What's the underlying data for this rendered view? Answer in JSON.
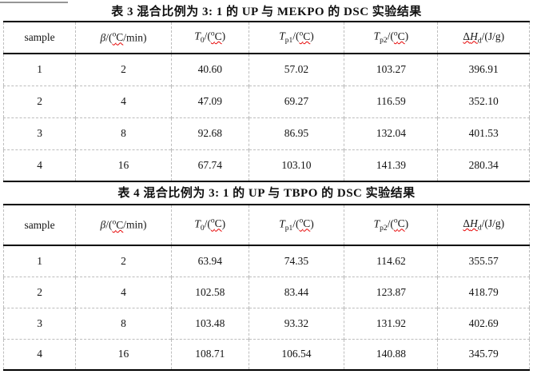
{
  "headers": [
    [
      {
        "t": "sample"
      }
    ],
    [
      {
        "t": "β",
        "s": "i"
      },
      {
        "t": "/("
      },
      {
        "g": [
          {
            "t": "o",
            "s": "sup"
          },
          {
            "t": "C"
          }
        ],
        "s": "wavy"
      },
      {
        "t": "/min)"
      }
    ],
    [
      {
        "t": "T",
        "s": "i"
      },
      {
        "t": "0",
        "s": "sub"
      },
      {
        "t": "/("
      },
      {
        "g": [
          {
            "t": "o",
            "s": "sup"
          },
          {
            "t": "C"
          }
        ],
        "s": "wavy"
      },
      {
        "t": ")"
      }
    ],
    [
      {
        "t": "T",
        "s": "i"
      },
      {
        "t": "p1",
        "s": "sub"
      },
      {
        "t": "/("
      },
      {
        "g": [
          {
            "t": "o",
            "s": "sup"
          },
          {
            "t": "C"
          }
        ],
        "s": "wavy"
      },
      {
        "t": ")"
      }
    ],
    [
      {
        "t": "T",
        "s": "i"
      },
      {
        "t": "p2",
        "s": "sub"
      },
      {
        "t": "/("
      },
      {
        "g": [
          {
            "t": "o",
            "s": "sup"
          },
          {
            "t": "C"
          }
        ],
        "s": "wavy"
      },
      {
        "t": ")"
      }
    ],
    [
      {
        "g": [
          {
            "t": "Δ"
          },
          {
            "t": "H",
            "s": "i"
          },
          {
            "t": "d",
            "s": "sub"
          }
        ],
        "s": "wavy"
      },
      {
        "t": "/(J/g)"
      }
    ]
  ],
  "tables": [
    {
      "title": "表 3 混合比例为 3: 1 的 UP 与 MEKPO 的 DSC 实验结果",
      "rows": [
        [
          "1",
          "2",
          "40.60",
          "57.02",
          "103.27",
          "396.91"
        ],
        [
          "2",
          "4",
          "47.09",
          "69.27",
          "116.59",
          "352.10"
        ],
        [
          "3",
          "8",
          "92.68",
          "86.95",
          "132.04",
          "401.53"
        ],
        [
          "4",
          "16",
          "67.74",
          "103.10",
          "141.39",
          "280.34"
        ]
      ]
    },
    {
      "title": "表 4  混合比例为 3: 1 的 UP 与 TBPO 的 DSC 实验结果",
      "rows": [
        [
          "1",
          "2",
          "63.94",
          "74.35",
          "114.62",
          "355.57"
        ],
        [
          "2",
          "4",
          "102.58",
          "83.44",
          "123.87",
          "418.79"
        ],
        [
          "3",
          "8",
          "103.48",
          "93.32",
          "131.92",
          "402.69"
        ],
        [
          "4",
          "16",
          "108.71",
          "106.54",
          "140.88",
          "345.79"
        ]
      ]
    }
  ],
  "colors": {
    "text": "#141414",
    "solid_border": "#000000",
    "dashed_grid": "#bdbdbd",
    "squiggle": "#e60000",
    "background": "#ffffff"
  }
}
